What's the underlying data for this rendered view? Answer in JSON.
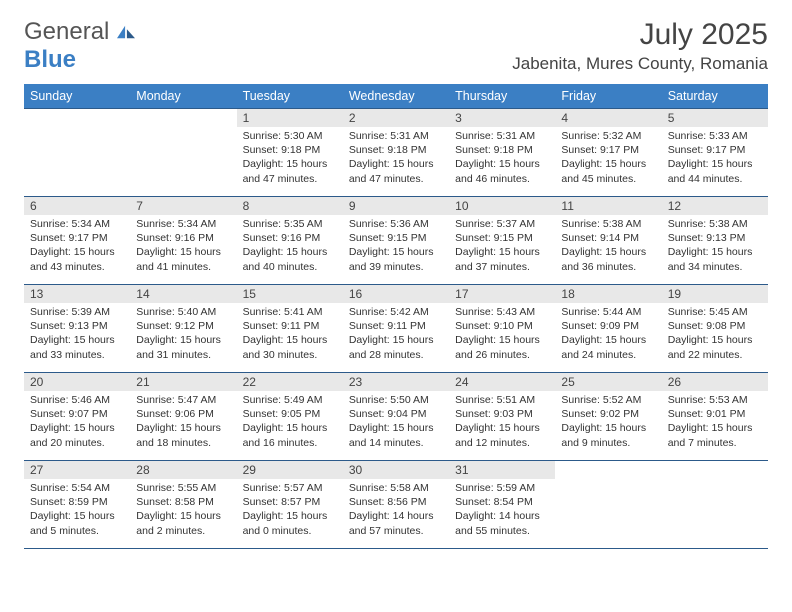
{
  "logo": {
    "word1": "General",
    "word2": "Blue",
    "accent_color": "#3b7fc4",
    "text_color": "#555555"
  },
  "header": {
    "title": "July 2025",
    "location": "Jabenita, Mures County, Romania",
    "title_fontsize": 30,
    "location_fontsize": 17
  },
  "calendar": {
    "header_bg": "#3b7fc4",
    "header_fg": "#ffffff",
    "rule_color": "#2c5a8a",
    "daynum_bg": "#e8e8e8",
    "cell_fontsize": 10.5,
    "dow_fontsize": 12.5,
    "dow": [
      "Sunday",
      "Monday",
      "Tuesday",
      "Wednesday",
      "Thursday",
      "Friday",
      "Saturday"
    ],
    "lead_empty": 2,
    "days": [
      {
        "n": 1,
        "sr": "5:30 AM",
        "ss": "9:18 PM",
        "dl": "15 hours and 47 minutes."
      },
      {
        "n": 2,
        "sr": "5:31 AM",
        "ss": "9:18 PM",
        "dl": "15 hours and 47 minutes."
      },
      {
        "n": 3,
        "sr": "5:31 AM",
        "ss": "9:18 PM",
        "dl": "15 hours and 46 minutes."
      },
      {
        "n": 4,
        "sr": "5:32 AM",
        "ss": "9:17 PM",
        "dl": "15 hours and 45 minutes."
      },
      {
        "n": 5,
        "sr": "5:33 AM",
        "ss": "9:17 PM",
        "dl": "15 hours and 44 minutes."
      },
      {
        "n": 6,
        "sr": "5:34 AM",
        "ss": "9:17 PM",
        "dl": "15 hours and 43 minutes."
      },
      {
        "n": 7,
        "sr": "5:34 AM",
        "ss": "9:16 PM",
        "dl": "15 hours and 41 minutes."
      },
      {
        "n": 8,
        "sr": "5:35 AM",
        "ss": "9:16 PM",
        "dl": "15 hours and 40 minutes."
      },
      {
        "n": 9,
        "sr": "5:36 AM",
        "ss": "9:15 PM",
        "dl": "15 hours and 39 minutes."
      },
      {
        "n": 10,
        "sr": "5:37 AM",
        "ss": "9:15 PM",
        "dl": "15 hours and 37 minutes."
      },
      {
        "n": 11,
        "sr": "5:38 AM",
        "ss": "9:14 PM",
        "dl": "15 hours and 36 minutes."
      },
      {
        "n": 12,
        "sr": "5:38 AM",
        "ss": "9:13 PM",
        "dl": "15 hours and 34 minutes."
      },
      {
        "n": 13,
        "sr": "5:39 AM",
        "ss": "9:13 PM",
        "dl": "15 hours and 33 minutes."
      },
      {
        "n": 14,
        "sr": "5:40 AM",
        "ss": "9:12 PM",
        "dl": "15 hours and 31 minutes."
      },
      {
        "n": 15,
        "sr": "5:41 AM",
        "ss": "9:11 PM",
        "dl": "15 hours and 30 minutes."
      },
      {
        "n": 16,
        "sr": "5:42 AM",
        "ss": "9:11 PM",
        "dl": "15 hours and 28 minutes."
      },
      {
        "n": 17,
        "sr": "5:43 AM",
        "ss": "9:10 PM",
        "dl": "15 hours and 26 minutes."
      },
      {
        "n": 18,
        "sr": "5:44 AM",
        "ss": "9:09 PM",
        "dl": "15 hours and 24 minutes."
      },
      {
        "n": 19,
        "sr": "5:45 AM",
        "ss": "9:08 PM",
        "dl": "15 hours and 22 minutes."
      },
      {
        "n": 20,
        "sr": "5:46 AM",
        "ss": "9:07 PM",
        "dl": "15 hours and 20 minutes."
      },
      {
        "n": 21,
        "sr": "5:47 AM",
        "ss": "9:06 PM",
        "dl": "15 hours and 18 minutes."
      },
      {
        "n": 22,
        "sr": "5:49 AM",
        "ss": "9:05 PM",
        "dl": "15 hours and 16 minutes."
      },
      {
        "n": 23,
        "sr": "5:50 AM",
        "ss": "9:04 PM",
        "dl": "15 hours and 14 minutes."
      },
      {
        "n": 24,
        "sr": "5:51 AM",
        "ss": "9:03 PM",
        "dl": "15 hours and 12 minutes."
      },
      {
        "n": 25,
        "sr": "5:52 AM",
        "ss": "9:02 PM",
        "dl": "15 hours and 9 minutes."
      },
      {
        "n": 26,
        "sr": "5:53 AM",
        "ss": "9:01 PM",
        "dl": "15 hours and 7 minutes."
      },
      {
        "n": 27,
        "sr": "5:54 AM",
        "ss": "8:59 PM",
        "dl": "15 hours and 5 minutes."
      },
      {
        "n": 28,
        "sr": "5:55 AM",
        "ss": "8:58 PM",
        "dl": "15 hours and 2 minutes."
      },
      {
        "n": 29,
        "sr": "5:57 AM",
        "ss": "8:57 PM",
        "dl": "15 hours and 0 minutes."
      },
      {
        "n": 30,
        "sr": "5:58 AM",
        "ss": "8:56 PM",
        "dl": "14 hours and 57 minutes."
      },
      {
        "n": 31,
        "sr": "5:59 AM",
        "ss": "8:54 PM",
        "dl": "14 hours and 55 minutes."
      }
    ],
    "labels": {
      "sunrise": "Sunrise: ",
      "sunset": "Sunset: ",
      "daylight": "Daylight: "
    }
  }
}
